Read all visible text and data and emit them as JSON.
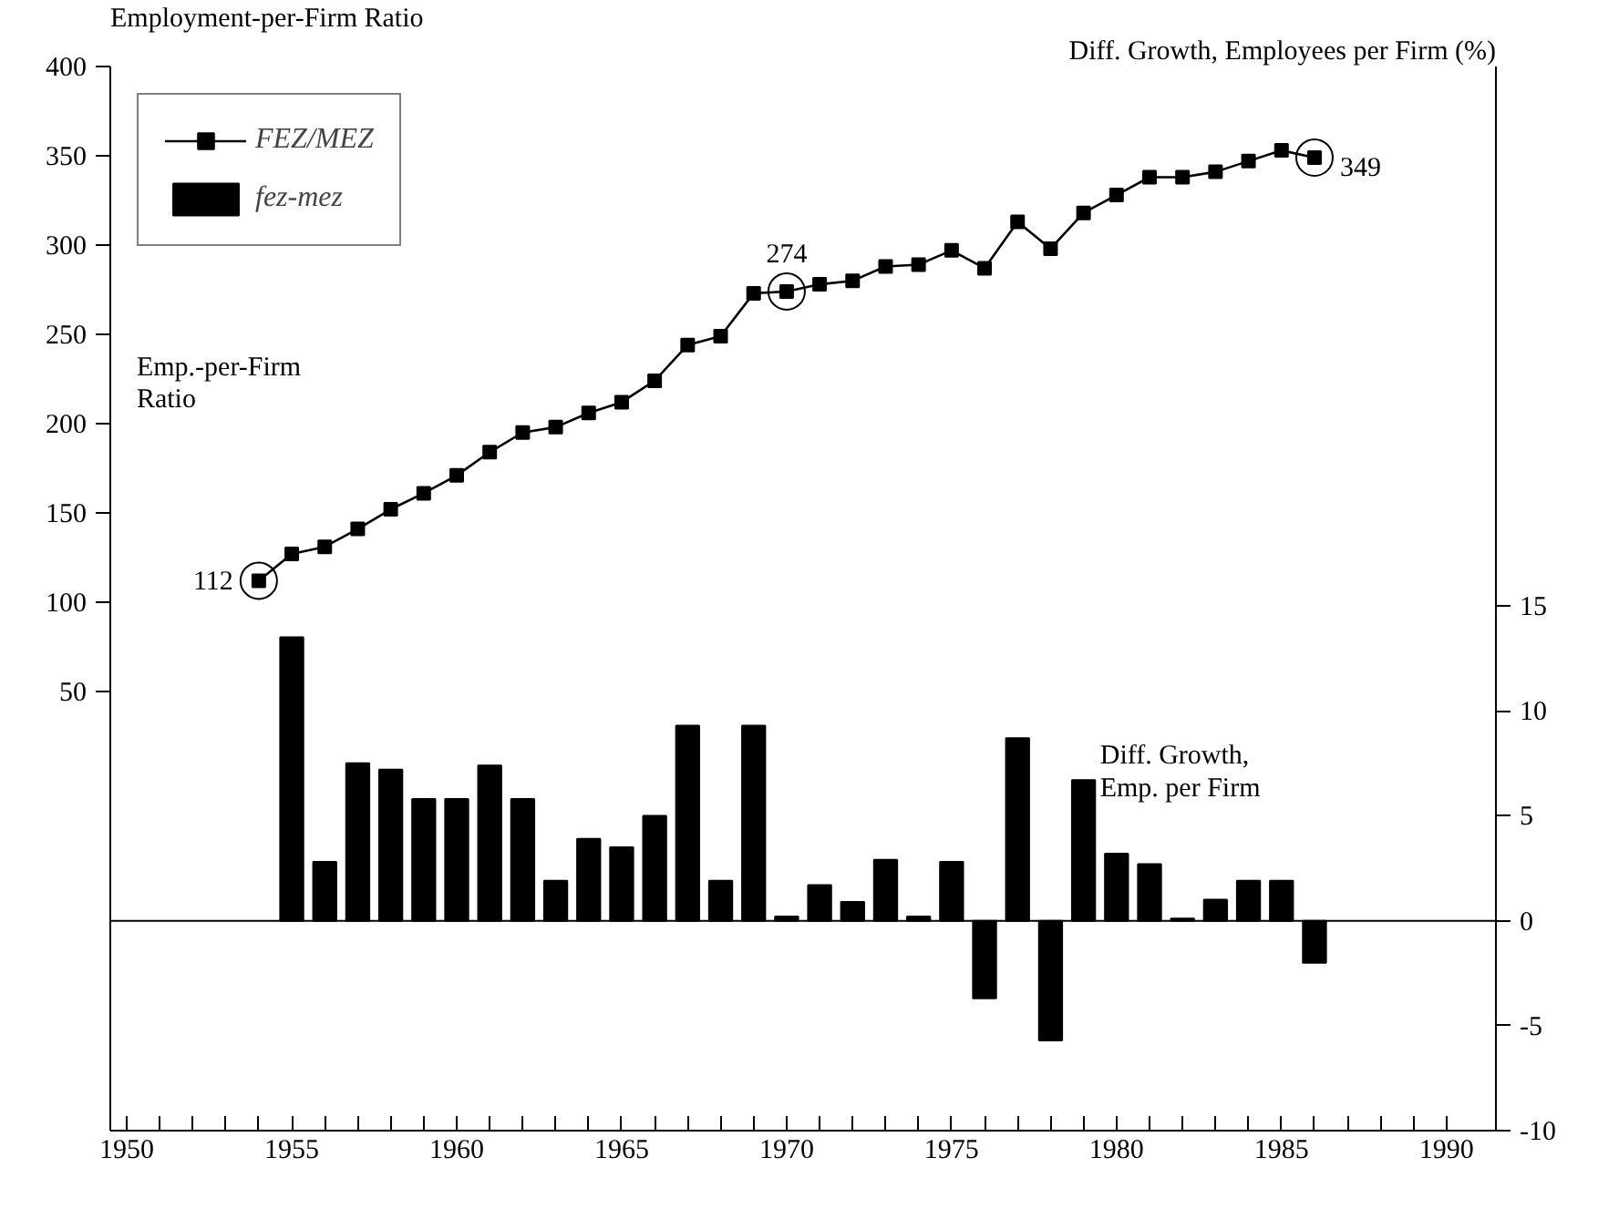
{
  "chart_data": {
    "type": "line",
    "ylabel": "Employment-per-Firm Ratio",
    "y2label": "Diff. Growth, Employees per Firm (%)",
    "x": [
      1954,
      1955,
      1956,
      1957,
      1958,
      1959,
      1960,
      1961,
      1962,
      1963,
      1964,
      1965,
      1966,
      1967,
      1968,
      1969,
      1970,
      1971,
      1972,
      1973,
      1974,
      1975,
      1976,
      1977,
      1978,
      1979,
      1980,
      1981,
      1982,
      1983,
      1984,
      1985,
      1986
    ],
    "series": [
      {
        "name": "FEZ/MEZ",
        "color": "#000000",
        "marker": "square",
        "line_style": "solid",
        "values": [
          112,
          127,
          131,
          141,
          152,
          161,
          171,
          184,
          195,
          198,
          206,
          212,
          224,
          244,
          249,
          273,
          274,
          278,
          280,
          288,
          289,
          297,
          287,
          313,
          298,
          318,
          328,
          338,
          338,
          341,
          347,
          353,
          349
        ]
      },
      {
        "name": "fez-mez",
        "type": "bar",
        "axis": "y2",
        "color": "#000000",
        "x": [
          1955,
          1956,
          1957,
          1958,
          1959,
          1960,
          1961,
          1962,
          1963,
          1964,
          1965,
          1966,
          1967,
          1968,
          1969,
          1970,
          1971,
          1972,
          1973,
          1974,
          1975,
          1976,
          1977,
          1978,
          1979,
          1980,
          1981,
          1982,
          1983,
          1984,
          1985,
          1986
        ],
        "values": [
          13.5,
          2.8,
          7.5,
          7.2,
          5.8,
          5.8,
          7.4,
          5.8,
          1.9,
          3.9,
          3.5,
          5.0,
          9.3,
          1.9,
          9.3,
          0.2,
          1.7,
          0.9,
          2.9,
          0.2,
          2.8,
          -3.7,
          8.7,
          -5.7,
          6.7,
          3.2,
          2.7,
          0.1,
          1.0,
          1.9,
          1.9,
          -2.0
        ]
      }
    ],
    "xlim": [
      1949.5,
      1991.5
    ],
    "xticks": [
      1950,
      {
        "value": 1951,
        "label": null
      },
      {
        "value": 1952,
        "label": null
      },
      {
        "value": 1953,
        "label": null
      },
      {
        "value": 1954,
        "label": null
      },
      1955,
      {
        "value": 1956,
        "label": null
      },
      {
        "value": 1957,
        "label": null
      },
      {
        "value": 1958,
        "label": null
      },
      {
        "value": 1959,
        "label": null
      },
      1960,
      {
        "value": 1961,
        "label": null
      },
      {
        "value": 1962,
        "label": null
      },
      {
        "value": 1963,
        "label": null
      },
      {
        "value": 1964,
        "label": null
      },
      1965,
      {
        "value": 1966,
        "label": null
      },
      {
        "value": 1967,
        "label": null
      },
      {
        "value": 1968,
        "label": null
      },
      {
        "value": 1969,
        "label": null
      },
      1970,
      {
        "value": 1971,
        "label": null
      },
      {
        "value": 1972,
        "label": null
      },
      {
        "value": 1973,
        "label": null
      },
      {
        "value": 1974,
        "label": null
      },
      1975,
      {
        "value": 1976,
        "label": null
      },
      {
        "value": 1977,
        "label": null
      },
      {
        "value": 1978,
        "label": null
      },
      {
        "value": 1979,
        "label": null
      },
      1980,
      {
        "value": 1981,
        "label": null
      },
      {
        "value": 1982,
        "label": null
      },
      {
        "value": 1983,
        "label": null
      },
      {
        "value": 1984,
        "label": null
      },
      1985,
      {
        "value": 1986,
        "label": null
      },
      {
        "value": 1987,
        "label": null
      },
      {
        "value": 1988,
        "label": null
      },
      {
        "value": 1989,
        "label": null
      },
      1990
    ],
    "ylim": [
      -196,
      400
    ],
    "yticks": [
      50,
      100,
      150,
      200,
      250,
      300,
      350,
      400
    ],
    "y2lim": [
      -10,
      40.7
    ],
    "y2ticks": [
      -10,
      -5,
      0,
      5,
      10,
      15
    ],
    "ref_lines": [
      {
        "axis": "y2",
        "value": 0,
        "color": "#000000"
      }
    ],
    "annotations": [
      {
        "text": "112",
        "x": 1954,
        "y": 112
      },
      {
        "text": "274",
        "x": 1970,
        "y": 274
      },
      {
        "text": "349",
        "x": 1986,
        "y": 349
      },
      "Emp.-per-Firm\nRatio",
      "Diff. Growth,\nEmp. per Firm"
    ],
    "legend": "top left",
    "grid": false
  }
}
